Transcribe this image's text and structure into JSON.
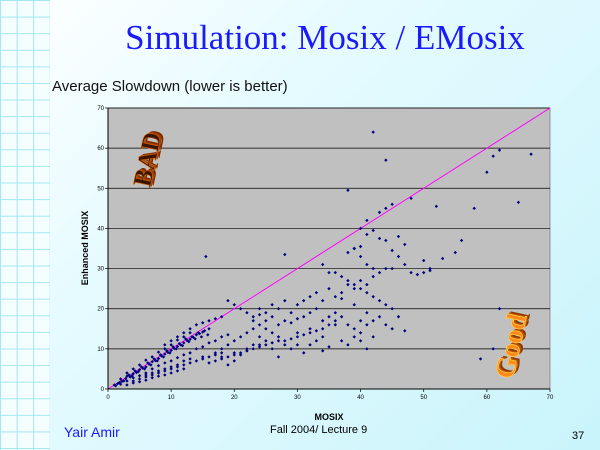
{
  "slide": {
    "title": "Simulation: Mosix / EMosix",
    "subtitle": "Average Slowdown (lower is better)",
    "author": "Yair Amir",
    "course": "Fall 2004/ Lecture 9",
    "page_number": "37",
    "bad_label": "BAD",
    "good_label": "Good"
  },
  "colors": {
    "title": "#1a1aff",
    "plot_background": "#c0c0c0",
    "points": "#000080",
    "diagonal": "#ff00ff",
    "label_3d": "#e05a00"
  },
  "chart_data": {
    "type": "scatter",
    "title": "",
    "xlabel": "MOSIX",
    "ylabel": "Enhanced MOSIX",
    "xlim": [
      0,
      70
    ],
    "ylim": [
      0,
      70
    ],
    "xticks": [
      0,
      10,
      20,
      30,
      40,
      50,
      60,
      70
    ],
    "yticks": [
      0,
      10,
      20,
      30,
      40,
      50,
      60,
      70
    ],
    "grid": "horizontal",
    "reference_line": {
      "from": [
        0,
        0
      ],
      "to": [
        70,
        70
      ]
    },
    "series": [
      {
        "points": [
          [
            1,
            1
          ],
          [
            1.5,
            1.3
          ],
          [
            2,
            2.5
          ],
          [
            2.5,
            2
          ],
          [
            3,
            3.2
          ],
          [
            3.5,
            3
          ],
          [
            4,
            3.8
          ],
          [
            4.5,
            4.1
          ],
          [
            5,
            4.8
          ],
          [
            5.5,
            5.2
          ],
          [
            6,
            5.5
          ],
          [
            6.5,
            6.2
          ],
          [
            7,
            6.8
          ],
          [
            7.5,
            7.1
          ],
          [
            8,
            7.6
          ],
          [
            8.5,
            8.2
          ],
          [
            9,
            8.7
          ],
          [
            9.5,
            9.1
          ],
          [
            10,
            9.6
          ],
          [
            10.5,
            10.1
          ],
          [
            11,
            10.6
          ],
          [
            11.5,
            11.0
          ],
          [
            12,
            11.5
          ],
          [
            12.5,
            12.1
          ],
          [
            13,
            12.4
          ],
          [
            13.5,
            12.9
          ],
          [
            14,
            13.5
          ],
          [
            14.5,
            13.8
          ],
          [
            15,
            14.2
          ],
          [
            16,
            15.0
          ],
          [
            2,
            1.2
          ],
          [
            3,
            2.0
          ],
          [
            4,
            2.8
          ],
          [
            5,
            3.3
          ],
          [
            6,
            4.0
          ],
          [
            7,
            5.0
          ],
          [
            8,
            5.8
          ],
          [
            9,
            6.5
          ],
          [
            10,
            7.0
          ],
          [
            11,
            7.8
          ],
          [
            12,
            8.5
          ],
          [
            13,
            9.0
          ],
          [
            14,
            10.0
          ],
          [
            15,
            10.5
          ],
          [
            16,
            11.5
          ],
          [
            17,
            12.0
          ],
          [
            18,
            13.0
          ],
          [
            19,
            13.5
          ],
          [
            3,
            4.0
          ],
          [
            4,
            5.0
          ],
          [
            5,
            6.0
          ],
          [
            6,
            7.2
          ],
          [
            7,
            8.0
          ],
          [
            8,
            9.2
          ],
          [
            9,
            10.0
          ],
          [
            10,
            11.0
          ],
          [
            11,
            12.2
          ],
          [
            12,
            13.0
          ],
          [
            13,
            14.0
          ],
          [
            6,
            3.0
          ],
          [
            7,
            4.0
          ],
          [
            8,
            4.5
          ],
          [
            9,
            5.0
          ],
          [
            10,
            5.5
          ],
          [
            11,
            6.0
          ],
          [
            12,
            7.0
          ],
          [
            13,
            7.5
          ],
          [
            15,
            8.0
          ],
          [
            17,
            9.0
          ],
          [
            18,
            10.0
          ],
          [
            19,
            11.0
          ],
          [
            20,
            12.0
          ],
          [
            21,
            13.0
          ],
          [
            22,
            14.0
          ],
          [
            23,
            15.0
          ],
          [
            24,
            16.0
          ],
          [
            25,
            15.0
          ],
          [
            26,
            14.0
          ],
          [
            20,
            9.0
          ],
          [
            22,
            10.0
          ],
          [
            24,
            11.0
          ],
          [
            25,
            12.0
          ],
          [
            27,
            13.0
          ],
          [
            28,
            12.0
          ],
          [
            30,
            14.0
          ],
          [
            32,
            15.0
          ],
          [
            34,
            13.0
          ],
          [
            36,
            16.0
          ],
          [
            18,
            8.0
          ],
          [
            19,
            6.0
          ],
          [
            20,
            7.0
          ],
          [
            21,
            8.5
          ],
          [
            22,
            9.5
          ],
          [
            23,
            11.0
          ],
          [
            24,
            13.0
          ],
          [
            26,
            10.0
          ],
          [
            27,
            8.0
          ],
          [
            29,
            10.0
          ],
          [
            30,
            11.0
          ],
          [
            31,
            9.0
          ],
          [
            32,
            11.0
          ],
          [
            33,
            12.0
          ],
          [
            34,
            9.5
          ],
          [
            35,
            10.5
          ],
          [
            19,
            22.0
          ],
          [
            20,
            21.0
          ],
          [
            21,
            20.0
          ],
          [
            22,
            19.0
          ],
          [
            23,
            18.0
          ],
          [
            24,
            20.0
          ],
          [
            25,
            19.0
          ],
          [
            26,
            21.0
          ],
          [
            27,
            20.0
          ],
          [
            28,
            22.0
          ],
          [
            29,
            19.0
          ],
          [
            30,
            21.0
          ],
          [
            31,
            22.0
          ],
          [
            32,
            23.0
          ],
          [
            33,
            24.0
          ],
          [
            34,
            22.0
          ],
          [
            35,
            25.0
          ],
          [
            36,
            23.0
          ],
          [
            37,
            24.0
          ],
          [
            38,
            26.0
          ],
          [
            39,
            25.0
          ],
          [
            40,
            27.0
          ],
          [
            41,
            26.0
          ],
          [
            42,
            28.0
          ],
          [
            43,
            29.0
          ],
          [
            44,
            30.0
          ],
          [
            45,
            30.0
          ],
          [
            28,
            33.5
          ],
          [
            34,
            31.0
          ],
          [
            35,
            29.0
          ],
          [
            38,
            34.0
          ],
          [
            39,
            35.0
          ],
          [
            40,
            33.0
          ],
          [
            41,
            31.0
          ],
          [
            42,
            30.0
          ],
          [
            36,
            29.0
          ],
          [
            37,
            28.0
          ],
          [
            38,
            27.0
          ],
          [
            39,
            26.0
          ],
          [
            40,
            25.0
          ],
          [
            41,
            24.0
          ],
          [
            42,
            23.0
          ],
          [
            43,
            22.0
          ],
          [
            44,
            21.0
          ],
          [
            45,
            20.0
          ],
          [
            46,
            18.0
          ],
          [
            47,
            14.5
          ],
          [
            42,
            13.0
          ],
          [
            40,
            17.0
          ],
          [
            41,
            19.0
          ],
          [
            39,
            21.0
          ],
          [
            37,
            22.5
          ],
          [
            36,
            19.0
          ],
          [
            35,
            18.0
          ],
          [
            34,
            17.0
          ],
          [
            33,
            20.0
          ],
          [
            32,
            19.0
          ],
          [
            31,
            18.0
          ],
          [
            30,
            17.5
          ],
          [
            29,
            16.5
          ],
          [
            28,
            17.0
          ],
          [
            27,
            16.0
          ],
          [
            26,
            18.0
          ],
          [
            25,
            17.0
          ],
          [
            24,
            18.5
          ],
          [
            23,
            17.0
          ],
          [
            15.5,
            33.0
          ],
          [
            38,
            49.5
          ],
          [
            40,
            40.0
          ],
          [
            41,
            42.0
          ],
          [
            42,
            39.5
          ],
          [
            43,
            44.0
          ],
          [
            44,
            45.0
          ],
          [
            45,
            46.0
          ],
          [
            46,
            38.0
          ],
          [
            47,
            36.0
          ],
          [
            48,
            47.5
          ],
          [
            42,
            64.0
          ],
          [
            44,
            57.0
          ],
          [
            39,
            35.0
          ],
          [
            40,
            35.5
          ],
          [
            41,
            38.5
          ],
          [
            50,
            32.0
          ],
          [
            51,
            30.0
          ],
          [
            52,
            45.5
          ],
          [
            53,
            32.5
          ],
          [
            55,
            34.0
          ],
          [
            56,
            37.0
          ],
          [
            58,
            45.0
          ],
          [
            60,
            54.0
          ],
          [
            61,
            58.0
          ],
          [
            62,
            59.5
          ],
          [
            62,
            20.0
          ],
          [
            65,
            46.5
          ],
          [
            67,
            58.5
          ],
          [
            59,
            7.5
          ],
          [
            61,
            10.0
          ],
          [
            44,
            37.0
          ],
          [
            43,
            37.5
          ],
          [
            45,
            34.5
          ],
          [
            46,
            33.0
          ],
          [
            47,
            31.0
          ],
          [
            48,
            29.0
          ],
          [
            49,
            28.5
          ],
          [
            50,
            29.0
          ],
          [
            51,
            29.5
          ],
          [
            1.2,
            0.8
          ],
          [
            1.8,
            1.6
          ],
          [
            2.2,
            1.9
          ],
          [
            2.8,
            2.6
          ],
          [
            3.3,
            3.5
          ],
          [
            3.8,
            3.3
          ],
          [
            4.3,
            4.5
          ],
          [
            4.8,
            4.3
          ],
          [
            5.3,
            5.5
          ],
          [
            5.8,
            5.0
          ],
          [
            6.3,
            6.5
          ],
          [
            6.8,
            6.0
          ],
          [
            7.3,
            7.5
          ],
          [
            7.8,
            7.0
          ],
          [
            8.3,
            8.5
          ],
          [
            8.8,
            8.0
          ],
          [
            9.3,
            9.5
          ],
          [
            9.8,
            9.0
          ],
          [
            10.3,
            10.5
          ],
          [
            10.8,
            10.0
          ],
          [
            11.3,
            11.3
          ],
          [
            11.8,
            10.8
          ],
          [
            12.3,
            12.5
          ],
          [
            12.8,
            11.8
          ],
          [
            13.3,
            13.0
          ],
          [
            13.8,
            12.5
          ],
          [
            14.3,
            14.0
          ],
          [
            14.8,
            13.0
          ],
          [
            15.3,
            14.5
          ],
          [
            15.8,
            13.5
          ],
          [
            4,
            2
          ],
          [
            5,
            2.5
          ],
          [
            6,
            3.5
          ],
          [
            7,
            3.5
          ],
          [
            8,
            4
          ],
          [
            9,
            4.5
          ],
          [
            10,
            5
          ],
          [
            11,
            5.5
          ],
          [
            12,
            6
          ],
          [
            13,
            6.5
          ],
          [
            14,
            7
          ],
          [
            15,
            7.5
          ],
          [
            16,
            8
          ],
          [
            17,
            8.5
          ],
          [
            18,
            9
          ],
          [
            9,
            11
          ],
          [
            10,
            12
          ],
          [
            11,
            13
          ],
          [
            12,
            14
          ],
          [
            13,
            15
          ],
          [
            14,
            16
          ],
          [
            15,
            16.5
          ],
          [
            16,
            17
          ],
          [
            17,
            17.5
          ],
          [
            18,
            18
          ],
          [
            3,
            1
          ],
          [
            4,
            1.5
          ],
          [
            5,
            1.8
          ],
          [
            6,
            2.2
          ],
          [
            7,
            2.8
          ],
          [
            8,
            3.2
          ],
          [
            9,
            3.5
          ],
          [
            10,
            4
          ],
          [
            11,
            4.5
          ],
          [
            12,
            5
          ],
          [
            16,
            6.5
          ],
          [
            17,
            7
          ],
          [
            18,
            7.5
          ],
          [
            19,
            8
          ],
          [
            20,
            8.5
          ],
          [
            21,
            9
          ],
          [
            22,
            9.5
          ],
          [
            23,
            10
          ],
          [
            24,
            10.5
          ],
          [
            25,
            11
          ],
          [
            26,
            11.5
          ],
          [
            27,
            12
          ],
          [
            28,
            11
          ],
          [
            29,
            12.5
          ],
          [
            30,
            13
          ],
          [
            31,
            13.5
          ],
          [
            32,
            14
          ],
          [
            33,
            14.5
          ],
          [
            34,
            15
          ],
          [
            35,
            16
          ],
          [
            36,
            17
          ],
          [
            37,
            18
          ],
          [
            38,
            16
          ],
          [
            39,
            15
          ],
          [
            40,
            14
          ],
          [
            41,
            16
          ],
          [
            42,
            17
          ],
          [
            43,
            18
          ],
          [
            44,
            16
          ],
          [
            45,
            15
          ],
          [
            37,
            12
          ],
          [
            38,
            11
          ],
          [
            39,
            13
          ],
          [
            40,
            12
          ],
          [
            41,
            10
          ]
        ]
      }
    ]
  }
}
